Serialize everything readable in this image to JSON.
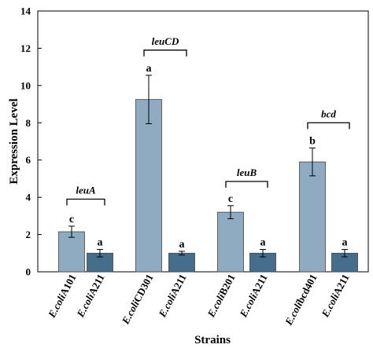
{
  "chart_data": {
    "type": "bar",
    "xlabel": "Strains",
    "ylabel": "Expression Level",
    "ylim": [
      0,
      14
    ],
    "yticks": [
      0,
      2,
      4,
      6,
      8,
      10,
      12,
      14
    ],
    "grid": false,
    "legend": "none",
    "categories": [
      {
        "prefix": "E.coli",
        "suffix": "A101"
      },
      {
        "prefix": "E.coli",
        "suffix": "A211"
      },
      {
        "prefix": "E.coli",
        "suffix": "CD301"
      },
      {
        "prefix": "E.coli",
        "suffix": "A211"
      },
      {
        "prefix": "E.coli",
        "suffix": "B201"
      },
      {
        "prefix": "E.coli",
        "suffix": "A211"
      },
      {
        "prefix": "E.coli",
        "suffix": "bcd401"
      },
      {
        "prefix": "E.coli",
        "suffix": "A211"
      }
    ],
    "values": [
      2.15,
      1.0,
      9.25,
      1.0,
      3.2,
      1.0,
      5.9,
      1.0
    ],
    "errors": [
      0.3,
      0.2,
      1.3,
      0.1,
      0.35,
      0.2,
      0.75,
      0.2
    ],
    "significance": [
      "c",
      "a",
      "a",
      "a",
      "c",
      "a",
      "b",
      "a"
    ],
    "bar_colors": [
      "#8eabc1",
      "#446e8b",
      "#8eabc1",
      "#446e8b",
      "#8eabc1",
      "#446e8b",
      "#8eabc1",
      "#446e8b"
    ],
    "groups": [
      {
        "label": "leuA",
        "bars": [
          0,
          1
        ],
        "bracket_y": 3.9
      },
      {
        "label": "leuCD",
        "bars": [
          2,
          3
        ],
        "bracket_y": 11.9
      },
      {
        "label": "leuB",
        "bars": [
          4,
          5
        ],
        "bracket_y": 4.85
      },
      {
        "label": "bcd",
        "bars": [
          6,
          7
        ],
        "bracket_y": 8.0
      }
    ]
  }
}
